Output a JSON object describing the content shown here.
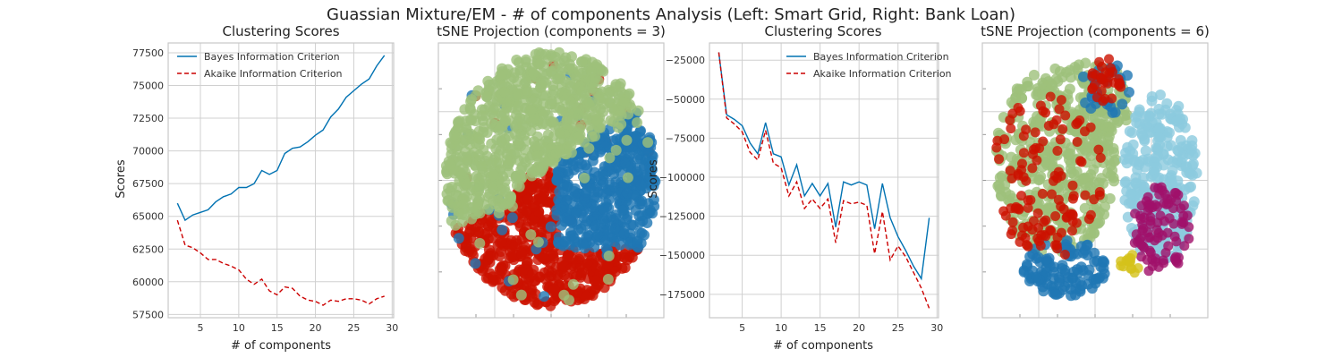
{
  "figure": {
    "suptitle": "Guassian Mixture/EM - # of components Analysis (Left: Smart Grid, Right: Bank Loan)"
  },
  "colors": {
    "bic": "#0072b2",
    "aic": "#cc0000",
    "cluster_blue": "#1f77b4",
    "cluster_red": "#cc1100",
    "cluster_green": "#9dc07a",
    "cluster_cyan": "#8ccbdf",
    "cluster_magenta": "#a0106a",
    "cluster_yellow": "#d4c21a",
    "grid": "#d0d0d0",
    "frame": "#c8c8c8"
  },
  "chart_data": [
    {
      "type": "line",
      "title": "Clustering Scores",
      "xlabel": "# of components",
      "ylabel": "Scores",
      "legend": "top-left",
      "grid": true,
      "xlim": [
        0.8,
        30.2
      ],
      "ylim": [
        57250,
        78250
      ],
      "xticks": [
        5,
        10,
        15,
        20,
        25,
        30
      ],
      "yticks": [
        57500,
        60000,
        62500,
        65000,
        67500,
        70000,
        72500,
        75000,
        77500
      ],
      "x": [
        2,
        3,
        4,
        5,
        6,
        7,
        8,
        9,
        10,
        11,
        12,
        13,
        14,
        15,
        16,
        17,
        18,
        19,
        20,
        21,
        22,
        23,
        24,
        25,
        26,
        27,
        28,
        29
      ],
      "series": [
        {
          "name": "Bayes Information Criterion",
          "style": "solid",
          "color": "bic",
          "values": [
            66000,
            64700,
            65100,
            65300,
            65500,
            66100,
            66500,
            66700,
            67200,
            67200,
            67500,
            68500,
            68200,
            68500,
            69800,
            70200,
            70300,
            70700,
            71200,
            71600,
            72600,
            73200,
            74100,
            74600,
            75100,
            75500,
            76500,
            77300
          ]
        },
        {
          "name": "Akaike Information Criterion",
          "style": "dashed",
          "color": "aic",
          "values": [
            64700,
            62800,
            62600,
            62200,
            61700,
            61700,
            61400,
            61200,
            60900,
            60200,
            59800,
            60200,
            59300,
            59000,
            59600,
            59500,
            58900,
            58600,
            58500,
            58200,
            58600,
            58500,
            58700,
            58700,
            58600,
            58300,
            58700,
            58900
          ]
        }
      ]
    },
    {
      "type": "scatter",
      "title": "tSNE Projection (components = 3)",
      "xlabel": "",
      "ylabel": "",
      "grid": true,
      "clusters": [
        "cluster_green",
        "cluster_blue",
        "cluster_red"
      ]
    },
    {
      "type": "line",
      "title": "Clustering Scores",
      "xlabel": "# of components",
      "ylabel": "Scores",
      "legend": "top-right",
      "grid": true,
      "xlim": [
        0.8,
        30.2
      ],
      "ylim": [
        -190000,
        -14000
      ],
      "xticks": [
        5,
        10,
        15,
        20,
        25,
        30
      ],
      "yticks": [
        -25000,
        -50000,
        -75000,
        -100000,
        -125000,
        -150000,
        -175000
      ],
      "x": [
        2,
        3,
        4,
        5,
        6,
        7,
        8,
        9,
        10,
        11,
        12,
        13,
        14,
        15,
        16,
        17,
        18,
        19,
        20,
        21,
        22,
        23,
        24,
        25,
        26,
        27,
        28,
        29
      ],
      "series": [
        {
          "name": "Bayes Information Criterion",
          "style": "solid",
          "color": "bic",
          "values": [
            -20000,
            -60000,
            -63000,
            -67000,
            -78000,
            -85000,
            -65000,
            -85000,
            -87000,
            -105000,
            -92000,
            -112000,
            -104000,
            -112000,
            -104000,
            -132000,
            -103000,
            -105000,
            -103000,
            -105000,
            -133000,
            -104000,
            -126000,
            -138000,
            -147000,
            -157000,
            -165000,
            -126000
          ]
        },
        {
          "name": "Akaike Information Criterion",
          "style": "dashed",
          "color": "aic",
          "values": [
            -20000,
            -62000,
            -66000,
            -71000,
            -84000,
            -89000,
            -70000,
            -91000,
            -94000,
            -112000,
            -103000,
            -120000,
            -114000,
            -120000,
            -114000,
            -142000,
            -115000,
            -117000,
            -116000,
            -118000,
            -149000,
            -122000,
            -153000,
            -144000,
            -151000,
            -161000,
            -171000,
            -184000
          ]
        }
      ]
    },
    {
      "type": "scatter",
      "title": "tSNE Projection (components = 6)",
      "xlabel": "",
      "ylabel": "",
      "grid": true,
      "clusters": [
        "cluster_green",
        "cluster_cyan",
        "cluster_red",
        "cluster_blue",
        "cluster_magenta",
        "cluster_yellow"
      ]
    }
  ]
}
